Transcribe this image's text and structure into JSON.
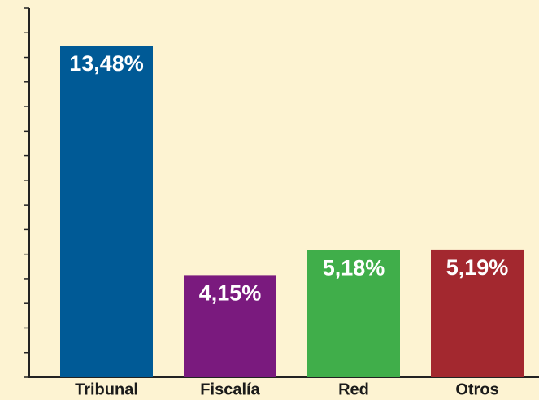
{
  "chart_data": {
    "type": "bar",
    "categories": [
      "Tribunal",
      "Fiscalía",
      "Red",
      "Otros"
    ],
    "values": [
      13.48,
      4.15,
      5.18,
      5.19
    ],
    "value_labels": [
      "13,48%",
      "4,15%",
      "5,18%",
      "5,19%"
    ],
    "colors": [
      "#005a96",
      "#7a1a7e",
      "#40ae4a",
      "#a3282f"
    ],
    "ylim": [
      0,
      15
    ],
    "yticks": [
      0,
      1,
      2,
      3,
      4,
      5,
      6,
      7,
      8,
      9,
      10,
      11,
      12,
      13,
      14,
      15
    ],
    "grid": false
  }
}
